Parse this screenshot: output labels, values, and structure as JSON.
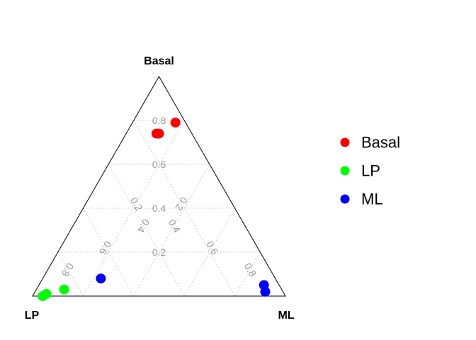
{
  "chart_data": {
    "type": "scatter",
    "subtype": "ternary",
    "vertices": {
      "top": "Basal",
      "left": "LP",
      "right": "ML"
    },
    "ticks": [
      0.2,
      0.4,
      0.6,
      0.8
    ],
    "tick_labels": [
      "0.2",
      "0.4",
      "0.6",
      "0.8"
    ],
    "grid": true,
    "legend_position": "right",
    "series": [
      {
        "name": "Basal",
        "color": "#ff0000",
        "points": [
          {
            "Basal": 0.79,
            "LP": 0.04,
            "ML": 0.17
          },
          {
            "Basal": 0.74,
            "LP": 0.13,
            "ML": 0.13
          },
          {
            "Basal": 0.74,
            "LP": 0.14,
            "ML": 0.12
          }
        ]
      },
      {
        "name": "LP",
        "color": "#00ff00",
        "points": [
          {
            "Basal": 0.0,
            "LP": 0.96,
            "ML": 0.04
          },
          {
            "Basal": 0.01,
            "LP": 0.94,
            "ML": 0.05
          },
          {
            "Basal": 0.03,
            "LP": 0.86,
            "ML": 0.11
          }
        ]
      },
      {
        "name": "ML",
        "color": "#0000ff",
        "points": [
          {
            "Basal": 0.08,
            "LP": 0.69,
            "ML": 0.23
          },
          {
            "Basal": 0.05,
            "LP": 0.06,
            "ML": 0.89
          },
          {
            "Basal": 0.02,
            "LP": 0.07,
            "ML": 0.91
          }
        ]
      }
    ]
  }
}
